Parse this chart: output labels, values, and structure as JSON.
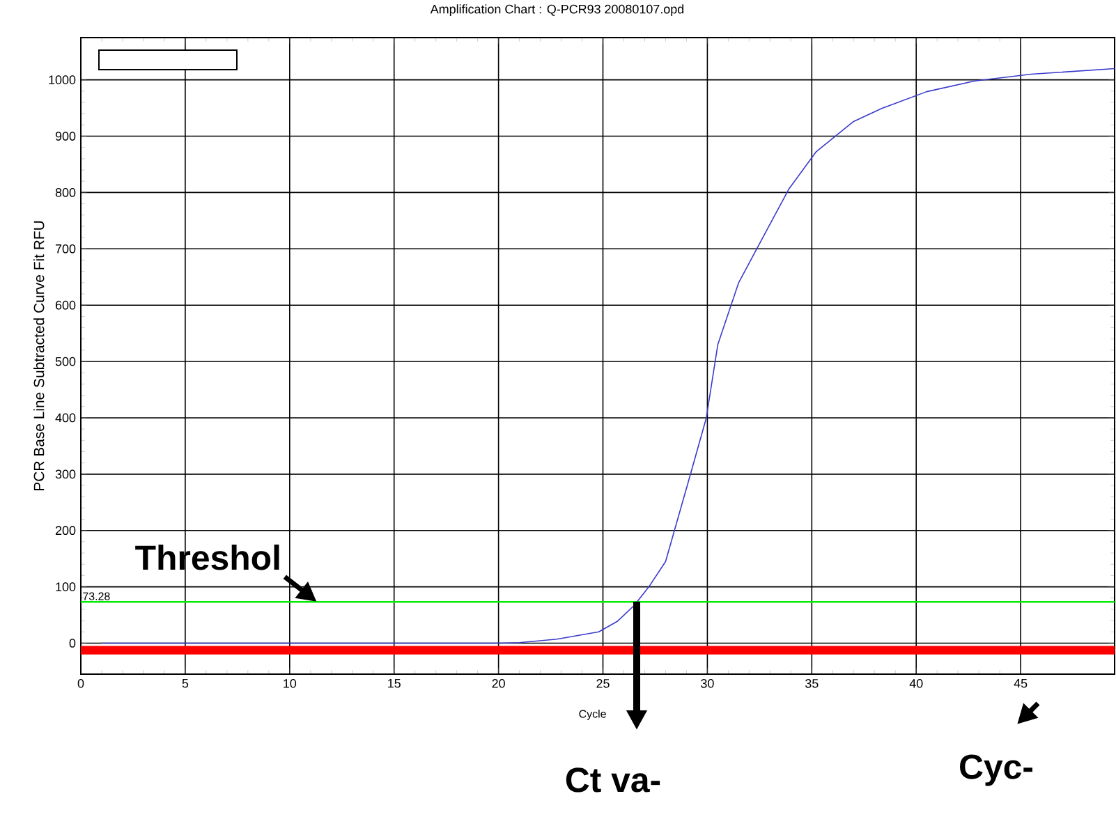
{
  "chart_data": {
    "type": "line",
    "title": "Amplification Chart : Q-PCR93 20080107.opd",
    "xlabel": "Cycle",
    "ylabel": "PCR Base Line Subtracted Curve Fit RFU",
    "x": [
      1,
      5,
      10,
      15,
      20,
      21,
      22.8,
      24.8,
      25.7,
      26.5,
      27.2,
      28,
      29.2,
      29.95,
      30.5,
      31.5,
      32.9,
      33.9,
      35.2,
      37,
      38.4,
      40.5,
      42.8,
      45.5,
      49.5
    ],
    "series": [
      {
        "color": "#3a3acc",
        "values": [
          0,
          0,
          0,
          0,
          0,
          1,
          7,
          20,
          39,
          67,
          100,
          145,
          301,
          400,
          530,
          640,
          737,
          806,
          872,
          926,
          950,
          979,
          998,
          1010,
          1020
        ]
      }
    ],
    "xlim": [
      0,
      49.5
    ],
    "ylim": [
      -55,
      1075
    ],
    "xticks": [
      0,
      5,
      10,
      15,
      20,
      25,
      30,
      35,
      40,
      45
    ],
    "yticks": [
      0,
      100,
      200,
      300,
      400,
      500,
      600,
      700,
      800,
      900,
      1000
    ],
    "grid": true,
    "marker": "none",
    "ref_lines": [
      {
        "axis": "y",
        "value": 73.28,
        "label": "73.28",
        "color": "#00ee00"
      }
    ],
    "bands": [
      {
        "axis": "y",
        "from": -20,
        "to": -5,
        "color": "#ff0000"
      }
    ],
    "annotations": [
      {
        "text": "Threshol",
        "x": 11.3,
        "y": 73.28
      },
      "Ct va-",
      "Cyc-"
    ]
  }
}
